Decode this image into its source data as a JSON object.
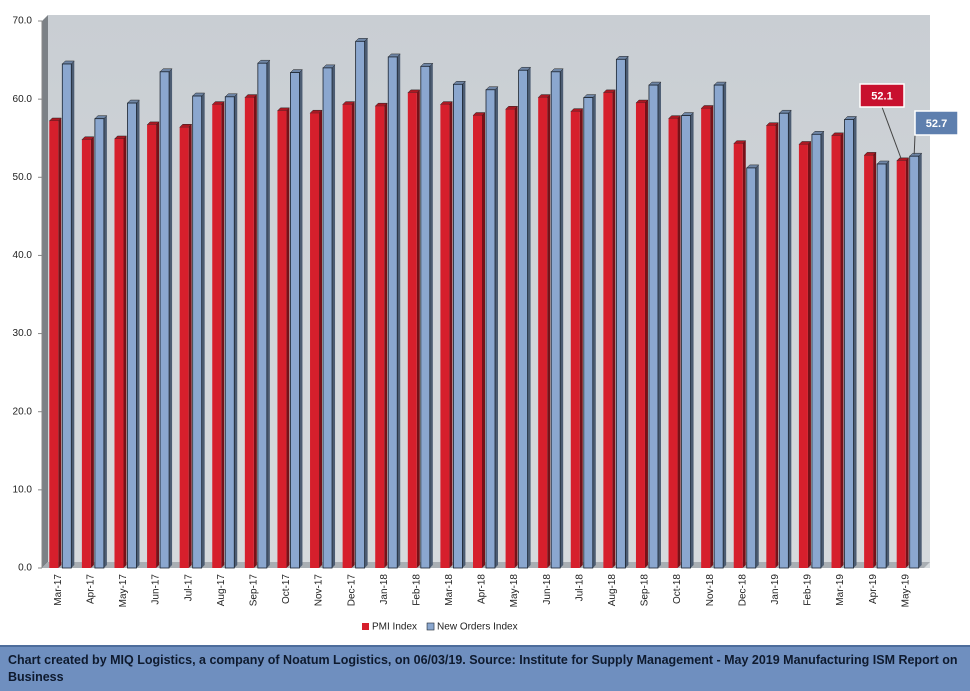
{
  "chart_data": {
    "type": "bar",
    "categories": [
      "Mar-17",
      "Apr-17",
      "May-17",
      "Jun-17",
      "Jul-17",
      "Aug-17",
      "Sep-17",
      "Oct-17",
      "Nov-17",
      "Dec-17",
      "Jan-18",
      "Feb-18",
      "Mar-18",
      "Apr-18",
      "May-18",
      "Jun-18",
      "Jul-18",
      "Aug-18",
      "Sep-18",
      "Oct-18",
      "Nov-18",
      "Dec-18",
      "Jan-19",
      "Feb-19",
      "Mar-19",
      "Apr-19",
      "May-19"
    ],
    "series": [
      {
        "name": "PMI Index",
        "color": "#d61f2c",
        "values": [
          57.2,
          54.8,
          54.9,
          56.7,
          56.4,
          59.3,
          60.2,
          58.5,
          58.2,
          59.3,
          59.1,
          60.8,
          59.3,
          57.9,
          58.7,
          60.2,
          58.4,
          60.8,
          59.5,
          57.5,
          58.8,
          54.3,
          56.6,
          54.2,
          55.3,
          52.8,
          52.1
        ]
      },
      {
        "name": "New Orders Index",
        "color": "#8ba7cf",
        "values": [
          64.5,
          57.5,
          59.5,
          63.5,
          60.4,
          60.3,
          64.6,
          63.4,
          64.0,
          67.4,
          65.4,
          64.2,
          61.9,
          61.2,
          63.7,
          63.5,
          60.2,
          65.1,
          61.8,
          57.9,
          61.8,
          51.2,
          58.2,
          55.5,
          57.4,
          51.7,
          52.7
        ]
      }
    ],
    "ylim": [
      0,
      70
    ],
    "yticks": [
      {
        "value": 0,
        "label": "0.0"
      },
      {
        "value": 10,
        "label": "10.0"
      },
      {
        "value": 20,
        "label": "20.0"
      },
      {
        "value": 30,
        "label": "30.0"
      },
      {
        "value": 40,
        "label": "40.0"
      },
      {
        "value": 50,
        "label": "50.0"
      },
      {
        "value": 60,
        "label": "60.0"
      },
      {
        "value": 70,
        "label": "70.0"
      }
    ],
    "grid": false,
    "legend": "bottom",
    "source": "Chart created by MIQ Logistics, a company of Noatum Logistics, on 06/03/19. Source: Institute for Supply Management - May 2019 Manufacturing ISM Report on Business"
  }
}
